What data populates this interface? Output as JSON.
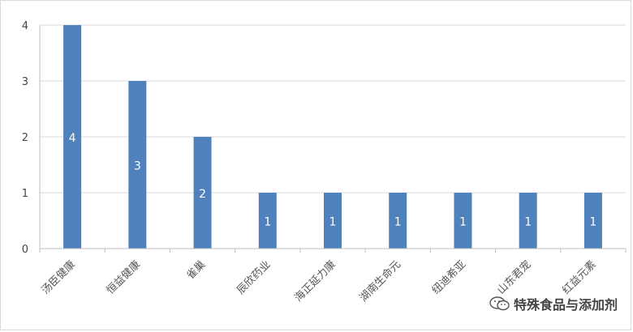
{
  "chart_data": {
    "type": "bar",
    "categories": [
      "汤臣健康",
      "恒益健康",
      "雀巢",
      "辰欣药业",
      "海正延力康",
      "湖南生命元",
      "纽迪希亚",
      "山东君宠",
      "红益元素"
    ],
    "values": [
      4,
      3,
      2,
      1,
      1,
      1,
      1,
      1,
      1
    ],
    "ylim": [
      0,
      4
    ],
    "yticks": [
      0,
      1,
      2,
      3,
      4
    ],
    "grid": true,
    "bar_color": "#4f81bd",
    "label_color": "#ffffff"
  },
  "watermark": {
    "text": "特殊食品与添加剂",
    "icon": "wechat-icon"
  }
}
